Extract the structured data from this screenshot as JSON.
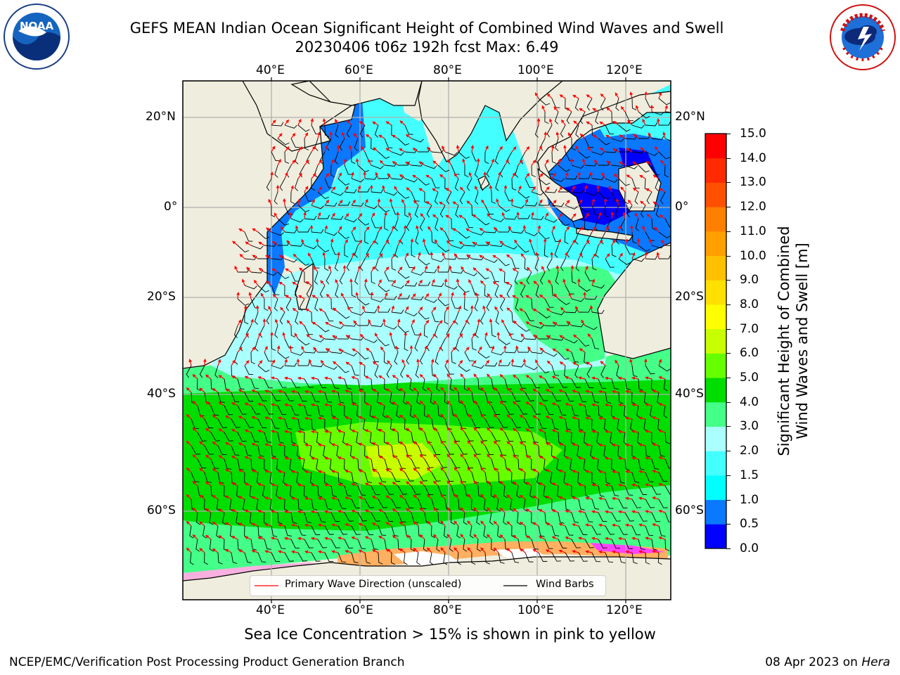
{
  "title": {
    "line1": "GEFS MEAN Indian Ocean Significant Height of Combined Wind Waves and Swell",
    "line2": "20230406 t06z 192h fcst   Max: 6.49"
  },
  "map": {
    "lon_ticks": [
      "40°E",
      "60°E",
      "80°E",
      "100°E",
      "120°E"
    ],
    "lat_ticks": [
      "20°N",
      "0°",
      "20°S",
      "40°S",
      "60°S"
    ],
    "extent": {
      "lon": [
        20,
        130
      ],
      "lat": [
        -70,
        28
      ]
    },
    "land_color": "#efeddd",
    "grid": true
  },
  "colorbar": {
    "label_line1": "Significant Height of Combined",
    "label_line2": "Wind Waves and Swell [m]",
    "ticks": [
      "0.0",
      "0.5",
      "1.0",
      "1.5",
      "2.0",
      "3.0",
      "4.0",
      "5.0",
      "6.0",
      "7.0",
      "8.0",
      "9.0",
      "10.0",
      "11.0",
      "12.0",
      "13.0",
      "14.0",
      "15.0"
    ],
    "colors": [
      "#0000ff",
      "#0a78ff",
      "#00ffff",
      "#44ffff",
      "#aaffff",
      "#44ff88",
      "#00dd00",
      "#66ff00",
      "#c8ff00",
      "#ffff00",
      "#ffe000",
      "#ffc000",
      "#ffa000",
      "#ff8000",
      "#ff5000",
      "#ff2a00",
      "#ff0000"
    ]
  },
  "legend": {
    "wave_label": "Primary Wave Direction (unscaled)",
    "barb_label": "Wind Barbs",
    "wave_color": "#ff0000",
    "barb_color": "#000000"
  },
  "caption": "Sea Ice Concentration > 15% is shown in pink to yellow",
  "footer": {
    "left": "NCEP/EMC/Verification Post Processing Product Generation Branch",
    "date": "08 Apr 2023 on ",
    "host": "Hera"
  },
  "logos": {
    "noaa": "NOAA",
    "nws": "NATIONAL WEATHER SERVICE"
  }
}
